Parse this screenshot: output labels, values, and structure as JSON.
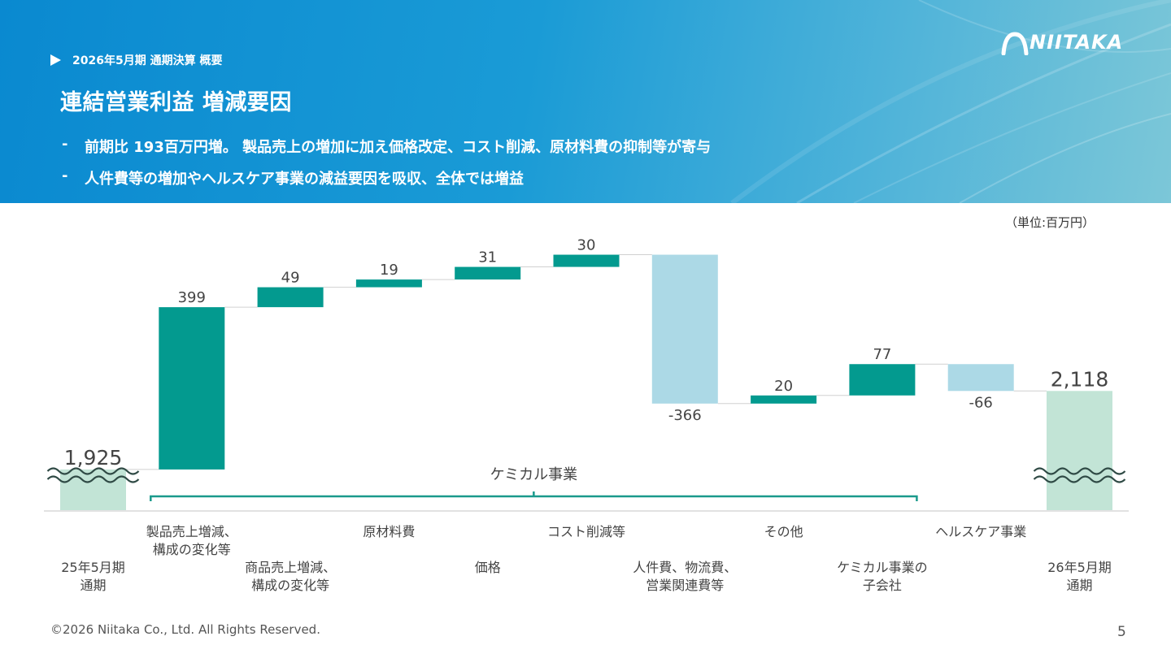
{
  "header": {
    "breadcrumb": "2026年5月期 通期決算 概要",
    "title": "連結営業利益 増減要因",
    "bullets": [
      "前期比 193百万円増。 製品売上の増加に加え価格改定、コスト削減、原材料費の抑制等が寄与",
      "人件費等の増加やヘルスケア事業の減益要因を吸収、全体では増益"
    ],
    "dash": "-",
    "logo": "NIITAKA"
  },
  "unit_label": "（単位:百万円）",
  "footer": {
    "copyright": "©2026 Niitaka Co., Ltd. All Rights Reserved.",
    "page_number": "5"
  },
  "colors": {
    "start_end": "#c2e4d6",
    "increase": "#039a8f",
    "decrease": "#acd9e6",
    "bracket": "#1a9a8c",
    "banner": "#1a9bd6"
  },
  "chart_data": {
    "type": "bar",
    "subtype": "waterfall",
    "categories": [
      [
        "25年5月期",
        "通期"
      ],
      [
        "製品売上増減、",
        "構成の変化等"
      ],
      [
        "商品売上増減、",
        "構成の変化等"
      ],
      [
        "原材料費"
      ],
      [
        "価格"
      ],
      [
        "コスト削減等"
      ],
      [
        "人件費、物流費、",
        "営業関連費等"
      ],
      [
        "その他"
      ],
      [
        "ケミカル事業の",
        "子会社"
      ],
      [
        "ヘルスケア事業"
      ],
      [
        "26年5月期",
        "通期"
      ]
    ],
    "values": [
      1925,
      399,
      49,
      19,
      31,
      30,
      -366,
      20,
      77,
      -66,
      2118
    ],
    "value_labels": [
      "1,925",
      "399",
      "49",
      "19",
      "31",
      "30",
      "-366",
      "20",
      "77",
      "-66",
      "2,118"
    ],
    "kinds": [
      "total",
      "delta",
      "delta",
      "delta",
      "delta",
      "delta",
      "delta",
      "delta",
      "delta",
      "delta",
      "total"
    ],
    "group": {
      "label": "ケミカル事業",
      "from_index": 1,
      "to_index": 8
    },
    "axis_break": true,
    "ylim": [
      1825,
      2500
    ]
  }
}
